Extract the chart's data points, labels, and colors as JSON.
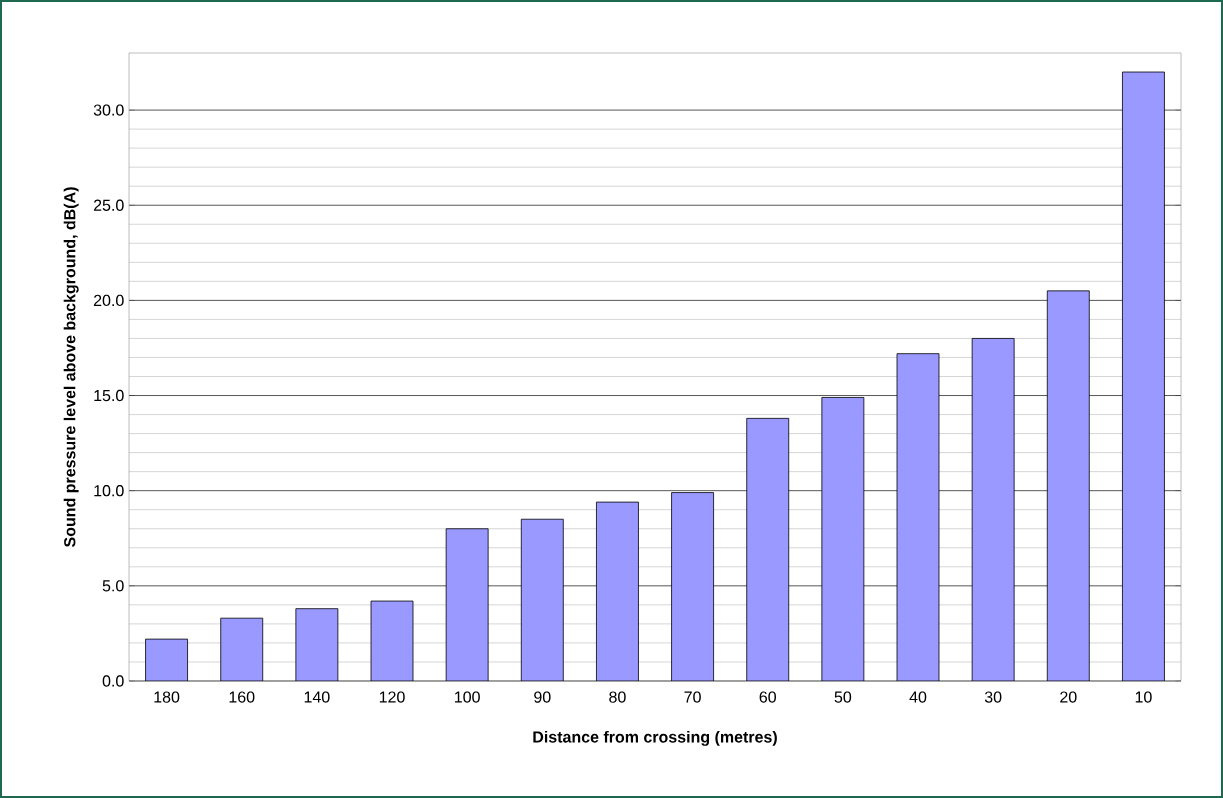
{
  "chart_data": {
    "type": "bar",
    "xlabel": "Distance from crossing (metres)",
    "ylabel": "Sound pressure level above background, dB(A)",
    "categories": [
      "180",
      "160",
      "140",
      "120",
      "100",
      "90",
      "80",
      "70",
      "60",
      "50",
      "40",
      "30",
      "20",
      "10"
    ],
    "values": [
      2.2,
      3.3,
      3.8,
      4.2,
      8.0,
      8.5,
      9.4,
      9.9,
      13.8,
      14.9,
      17.2,
      18.0,
      20.5,
      32.0
    ],
    "color": "#9999ff",
    "ylim": [
      0,
      33
    ],
    "yticks": [
      {
        "value": 0,
        "label": "0.0"
      },
      {
        "value": 5,
        "label": "5.0"
      },
      {
        "value": 10,
        "label": "10.0"
      },
      {
        "value": 15,
        "label": "15.0"
      },
      {
        "value": 20,
        "label": "20.0"
      },
      {
        "value": 25,
        "label": "25.0"
      },
      {
        "value": 30,
        "label": "30.0"
      }
    ],
    "grid": "y"
  }
}
